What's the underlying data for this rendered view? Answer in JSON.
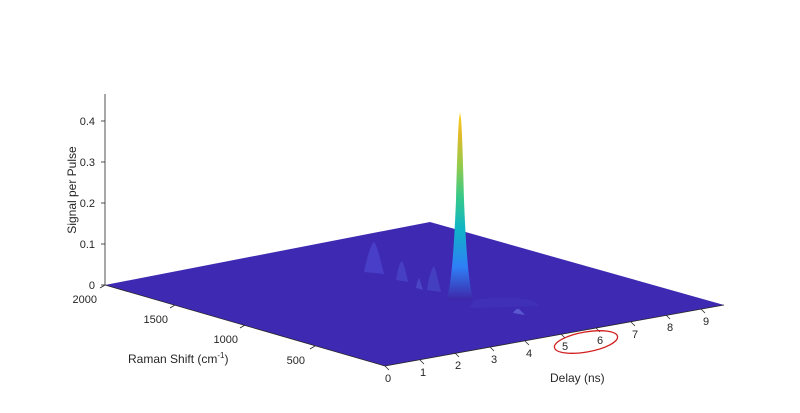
{
  "chart_data": {
    "type": "surface",
    "title": "",
    "xlabel": "Delay (ns)",
    "ylabel_main": "Raman Shift (cm",
    "ylabel_sup": "-1",
    "ylabel_end": ")",
    "zlabel": "Signal per Pulse",
    "x_ticks": [
      "0",
      "1",
      "2",
      "3",
      "4",
      "5",
      "6",
      "7",
      "8",
      "9"
    ],
    "x_range": [
      0,
      9.6
    ],
    "y_ticks": [
      "500",
      "1000",
      "1500",
      "2000"
    ],
    "y_range": [
      0,
      2000
    ],
    "z_ticks": [
      "0",
      "0.1",
      "0.2",
      "0.3",
      "0.4"
    ],
    "z_range": [
      0,
      0.45
    ],
    "grid": false,
    "surface_color": "#3e2ab2",
    "colormap": [
      "#3e26a8",
      "#2e81f7",
      "#10b5c6",
      "#37c988",
      "#96cb4a",
      "#e2b92a",
      "#f9d31d"
    ],
    "highlight_color": "#d21e1e",
    "highlight_ticks": [
      "5",
      "6"
    ],
    "peaks": [
      {
        "delay": 2.3,
        "raman_shift": 1000,
        "signal": 0.42
      },
      {
        "delay": 1.1,
        "raman_shift": 1560,
        "signal": 0.09
      },
      {
        "delay": 1.3,
        "raman_shift": 1470,
        "signal": 0.07
      },
      {
        "delay": 1.7,
        "raman_shift": 1400,
        "signal": 0.06
      },
      {
        "delay": 1.9,
        "raman_shift": 1250,
        "signal": 0.05
      }
    ]
  }
}
